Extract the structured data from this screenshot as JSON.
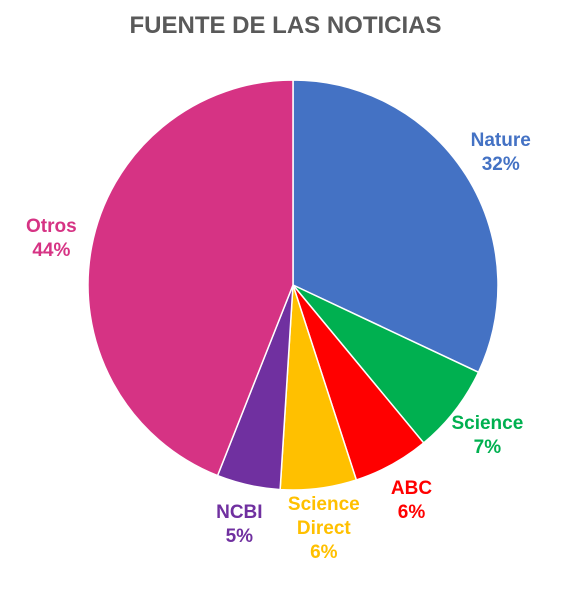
{
  "chart_data": {
    "type": "pie",
    "title": "FUENTE DE LAS NOTICIAS",
    "categories": [
      "Nature",
      "Science",
      "ABC",
      "Science Direct",
      "NCBI",
      "Otros"
    ],
    "values": [
      32,
      7,
      6,
      6,
      5,
      44
    ],
    "value_labels": [
      "32%",
      "7%",
      "6%",
      "6%",
      "5%",
      "44%"
    ],
    "colors": [
      "#4472c4",
      "#00b050",
      "#ff0000",
      "#ffc000",
      "#7030a0",
      "#d63384"
    ]
  }
}
